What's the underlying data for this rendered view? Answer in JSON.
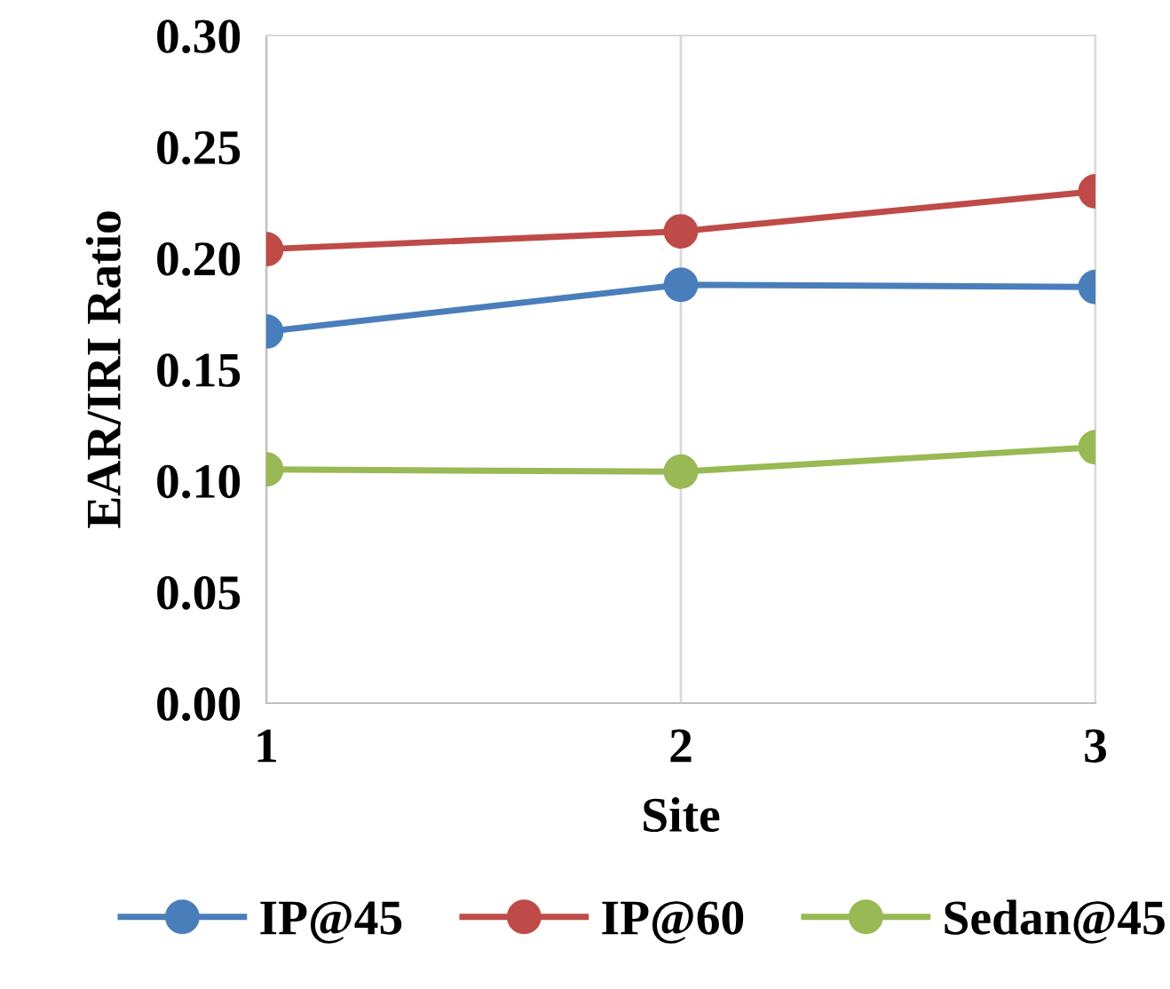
{
  "chart_data": {
    "type": "line",
    "xlabel": "Site",
    "ylabel": "EAR/IRI Ratio",
    "x": [
      1,
      2,
      3
    ],
    "series": [
      {
        "name": "IP@45",
        "color": "#4a7ebb",
        "values": [
          0.167,
          0.188,
          0.187
        ]
      },
      {
        "name": "IP@60",
        "color": "#be4b48",
        "values": [
          0.204,
          0.212,
          0.23
        ]
      },
      {
        "name": "Sedan@45",
        "color": "#98b954",
        "values": [
          0.105,
          0.104,
          0.115
        ]
      }
    ],
    "xlim": [
      1,
      3
    ],
    "xticks": [
      1,
      2,
      3
    ],
    "ylim": [
      0,
      0.3
    ],
    "yticks": [
      {
        "value": 0,
        "label": "0.00"
      },
      {
        "value": 0.05,
        "label": "0.05"
      },
      {
        "value": 0.1,
        "label": "0.10"
      },
      {
        "value": 0.15,
        "label": "0.15"
      },
      {
        "value": 0.2,
        "label": "0.20"
      },
      {
        "value": 0.25,
        "label": "0.25"
      },
      {
        "value": 0.3,
        "label": "0.30"
      }
    ],
    "grid": "x",
    "legend": "bottom",
    "marker": "circle",
    "line_style": "solid"
  }
}
